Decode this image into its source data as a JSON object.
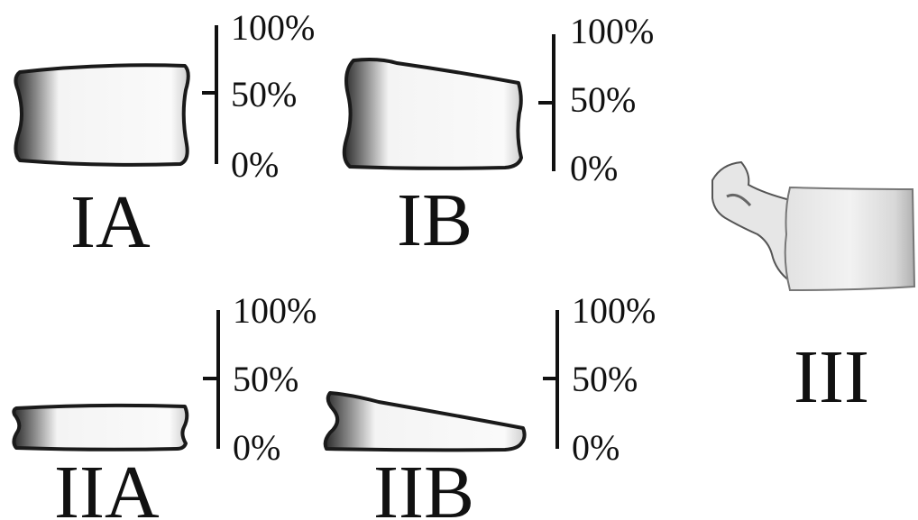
{
  "panels": [
    {
      "id": "IA",
      "label": "IA",
      "scale": [
        "100%",
        "50%",
        "0%"
      ]
    },
    {
      "id": "IB",
      "label": "IB",
      "scale": [
        "100%",
        "50%",
        "0%"
      ]
    },
    {
      "id": "IIA",
      "label": "IIA",
      "scale": [
        "100%",
        "50%",
        "0%"
      ]
    },
    {
      "id": "IIB",
      "label": "IIB",
      "scale": [
        "100%",
        "50%",
        "0%"
      ]
    },
    {
      "id": "III",
      "label": "III"
    }
  ]
}
